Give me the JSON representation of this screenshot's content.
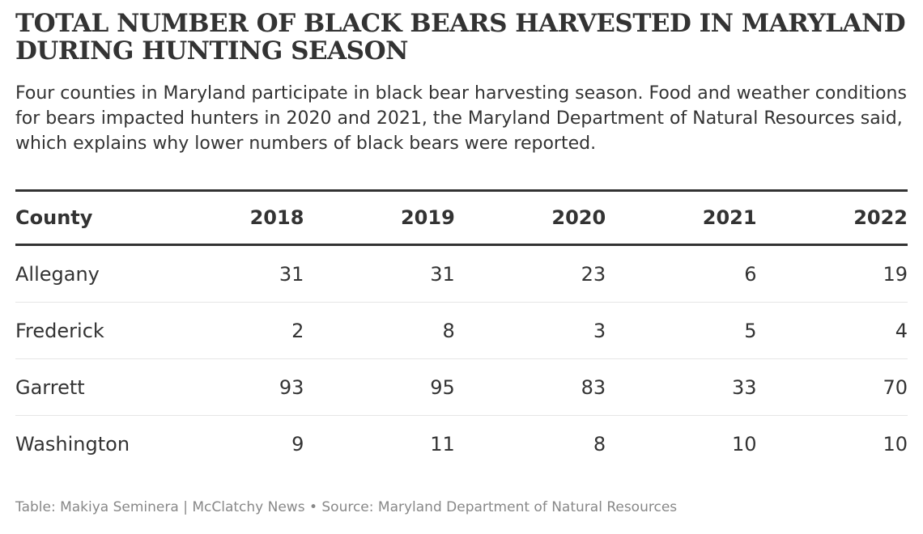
{
  "chart_data": {
    "type": "table",
    "title": "Total number of black bears harvested in Maryland during hunting season",
    "subtitle": "Four counties in Maryland participate in black bear harvesting season. Food and weather conditions for bears impacted hunters in 2020 and 2021, the Maryland Department of Natural Resources said, which explains why lower numbers of black bears were reported.",
    "columns": [
      "County",
      "2018",
      "2019",
      "2020",
      "2021",
      "2022"
    ],
    "rows": [
      [
        "Allegany",
        "31",
        "31",
        "23",
        "6",
        "19"
      ],
      [
        "Frederick",
        "2",
        "8",
        "3",
        "5",
        "4"
      ],
      [
        "Garrett",
        "93",
        "95",
        "83",
        "33",
        "70"
      ],
      [
        "Washington",
        "9",
        "11",
        "8",
        "10",
        "10"
      ]
    ],
    "footer": "Table: Makiya Seminera | McClatchy News • Source: Maryland Department of Natural Resources"
  }
}
